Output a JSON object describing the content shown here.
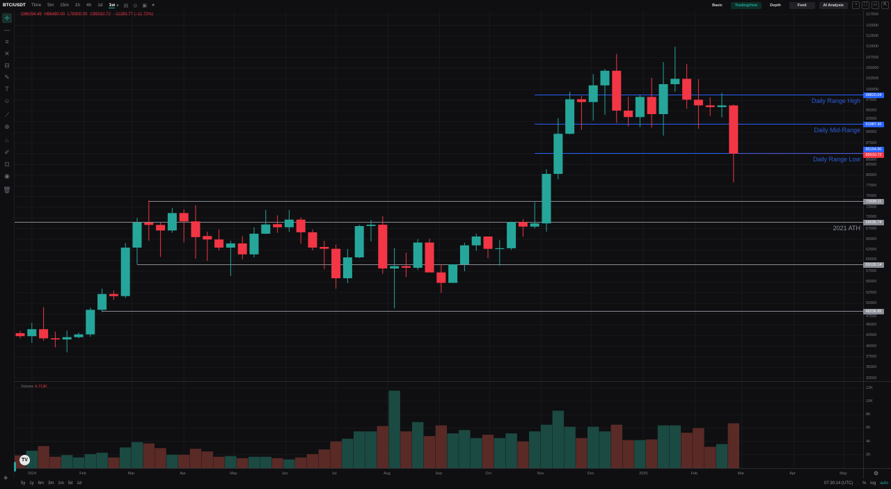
{
  "toolbar": {
    "symbol": "BTC/USDT",
    "timeframes": [
      "Time",
      "5m",
      "15m",
      "1h",
      "4h",
      "1d",
      "1w"
    ],
    "active_timeframe": "1w",
    "icons": [
      "candle-type-icon",
      "indicator-icon",
      "camera-icon",
      "settings-icon"
    ],
    "right_buttons": [
      "Basic",
      "TradingView",
      "Depth",
      "Feed",
      "AI Analysis"
    ],
    "active_view": "TradingView",
    "right_icons": [
      "timer-icon",
      "fullscreen-icon",
      "layout-icon",
      "popout-icon"
    ]
  },
  "legend": {
    "open": "O96294.49",
    "high": "H96490.00",
    "low": "L78300.00",
    "close": "C85010.72",
    "change": "−11283.77 (−11.72%)"
  },
  "left_tools": [
    "crosshair-icon",
    "trend-line-icon",
    "horizontal-lines-icon",
    "fib-icon",
    "pattern-icon",
    "brush-icon",
    "text-icon",
    "emoji-icon",
    "ruler-icon",
    "zoom-icon",
    "magnet-icon",
    "draw-lock-icon",
    "lock-icon",
    "eye-icon",
    "trash-icon"
  ],
  "colors": {
    "up": "#26a69a",
    "down": "#f23645",
    "up_volume": "#1b4a43",
    "down_volume": "#5a2a27",
    "level_blue": "#2962ff",
    "level_grey": "#8a8d96"
  },
  "chart_data": {
    "type": "candlestick",
    "symbol": "BTC/USDT",
    "interval": "1w",
    "ylim": [
      32000,
      118500
    ],
    "price_ticks": [
      117500,
      115000,
      112500,
      110000,
      107500,
      105000,
      102500,
      100000,
      97500,
      95000,
      92500,
      90000,
      87500,
      85000,
      82500,
      80000,
      77500,
      75000,
      72500,
      70000,
      67500,
      65000,
      62500,
      60000,
      57500,
      55000,
      52500,
      50000,
      47500,
      45000,
      42500,
      40000,
      37500,
      35000,
      32500
    ],
    "time_ticks": [
      {
        "label": "2024",
        "date": "2024-01-01"
      },
      {
        "label": "Feb",
        "date": "2024-02-01"
      },
      {
        "label": "Mar",
        "date": "2024-03-01"
      },
      {
        "label": "Apr",
        "date": "2024-04-01"
      },
      {
        "label": "May",
        "date": "2024-05-01"
      },
      {
        "label": "Jun",
        "date": "2024-06-01"
      },
      {
        "label": "Jul",
        "date": "2024-07-01"
      },
      {
        "label": "Aug",
        "date": "2024-08-01"
      },
      {
        "label": "Sep",
        "date": "2024-09-01"
      },
      {
        "label": "Oct",
        "date": "2024-10-01"
      },
      {
        "label": "Nov",
        "date": "2024-11-01"
      },
      {
        "label": "Dec",
        "date": "2024-12-01"
      },
      {
        "label": "2025",
        "date": "2025-01-01"
      },
      {
        "label": "Feb",
        "date": "2025-02-01"
      },
      {
        "label": "Mar",
        "date": "2025-03-01"
      },
      {
        "label": "Apr",
        "date": "2025-04-01"
      },
      {
        "label": "May",
        "date": "2025-05-01"
      }
    ],
    "dates": [
      "2023-12-25",
      "2024-01-01",
      "2024-01-08",
      "2024-01-15",
      "2024-01-22",
      "2024-01-29",
      "2024-02-05",
      "2024-02-12",
      "2024-02-19",
      "2024-02-26",
      "2024-03-04",
      "2024-03-11",
      "2024-03-18",
      "2024-03-25",
      "2024-04-01",
      "2024-04-08",
      "2024-04-15",
      "2024-04-22",
      "2024-04-29",
      "2024-05-06",
      "2024-05-13",
      "2024-05-20",
      "2024-05-27",
      "2024-06-03",
      "2024-06-10",
      "2024-06-17",
      "2024-06-24",
      "2024-07-01",
      "2024-07-08",
      "2024-07-15",
      "2024-07-22",
      "2024-07-29",
      "2024-08-05",
      "2024-08-12",
      "2024-08-19",
      "2024-08-26",
      "2024-09-02",
      "2024-09-09",
      "2024-09-16",
      "2024-09-23",
      "2024-09-30",
      "2024-10-07",
      "2024-10-14",
      "2024-10-21",
      "2024-10-28",
      "2024-11-04",
      "2024-11-11",
      "2024-11-18",
      "2024-11-25",
      "2024-12-02",
      "2024-12-09",
      "2024-12-16",
      "2024-12-23",
      "2024-12-30",
      "2025-01-06",
      "2025-01-13",
      "2025-01-20",
      "2025-01-27",
      "2025-02-03",
      "2025-02-10",
      "2025-02-17",
      "2025-02-24"
    ],
    "ohlc": [
      [
        43030,
        43600,
        41800,
        42330
      ],
      [
        42330,
        45460,
        40770,
        43960
      ],
      [
        43960,
        49100,
        41290,
        41830
      ],
      [
        41830,
        43420,
        39710,
        41560
      ],
      [
        41560,
        43640,
        38570,
        42100
      ],
      [
        42100,
        43200,
        41800,
        42750
      ],
      [
        42750,
        49000,
        42200,
        48500
      ],
      [
        48500,
        53470,
        47900,
        52190
      ],
      [
        52190,
        53000,
        50800,
        51700
      ],
      [
        51700,
        64120,
        51260,
        63040
      ],
      [
        63040,
        70000,
        59130,
        68900
      ],
      [
        68900,
        74050,
        64650,
        68350
      ],
      [
        68350,
        68920,
        60870,
        67050
      ],
      [
        67050,
        72300,
        66500,
        71120
      ],
      [
        71120,
        72000,
        64290,
        69170
      ],
      [
        69170,
        72960,
        60480,
        65490
      ],
      [
        65750,
        66780,
        59950,
        64940
      ],
      [
        64940,
        67270,
        62380,
        63040
      ],
      [
        63040,
        64660,
        56420,
        64020
      ],
      [
        64020,
        65730,
        60320,
        61460
      ],
      [
        61460,
        67800,
        60760,
        66290
      ],
      [
        66290,
        71870,
        66180,
        68450
      ],
      [
        68520,
        70600,
        66500,
        67800
      ],
      [
        67800,
        71870,
        66700,
        69590
      ],
      [
        69590,
        70100,
        63970,
        66620
      ],
      [
        66620,
        67270,
        62380,
        63040
      ],
      [
        63200,
        64660,
        58000,
        62770
      ],
      [
        62770,
        63740,
        53440,
        55880
      ],
      [
        55880,
        62700,
        54740,
        60760
      ],
      [
        60760,
        68400,
        60600,
        68080
      ],
      [
        68100,
        69500,
        64500,
        68400
      ],
      [
        68400,
        70400,
        56900,
        58160
      ],
      [
        58160,
        62930,
        48840,
        58700
      ],
      [
        58700,
        61850,
        56160,
        58320
      ],
      [
        58320,
        65030,
        57830,
        64230
      ],
      [
        64230,
        65100,
        57240,
        57240
      ],
      [
        57240,
        59130,
        52450,
        54800
      ],
      [
        54800,
        59130,
        54800,
        59130
      ],
      [
        59130,
        64200,
        57500,
        63570
      ],
      [
        63570,
        66300,
        62300,
        65640
      ],
      [
        65640,
        65640,
        60580,
        62760
      ],
      [
        62760,
        64840,
        58800,
        62900
      ],
      [
        62900,
        69100,
        62500,
        69000
      ],
      [
        69000,
        69700,
        65600,
        67950
      ],
      [
        67950,
        73660,
        67540,
        68700
      ],
      [
        68700,
        81370,
        66800,
        80280
      ],
      [
        80280,
        93290,
        79000,
        89660
      ],
      [
        89660,
        99520,
        89500,
        97730
      ],
      [
        97730,
        98550,
        90600,
        97080
      ],
      [
        97080,
        103590,
        92750,
        100980
      ],
      [
        100980,
        104790,
        94100,
        104400
      ],
      [
        104400,
        108370,
        92200,
        95080
      ],
      [
        95080,
        98300,
        91400,
        93570
      ],
      [
        93570,
        98650,
        91220,
        98280
      ],
      [
        98280,
        102770,
        91120,
        94260
      ],
      [
        94260,
        106420,
        89220,
        101260
      ],
      [
        101260,
        109990,
        99500,
        102510
      ],
      [
        102510,
        106000,
        95500,
        97630
      ],
      [
        97630,
        102400,
        90850,
        96300
      ],
      [
        96300,
        98200,
        93830,
        95900
      ],
      [
        95900,
        99200,
        93500,
        96294
      ],
      [
        96294.49,
        96490,
        78300,
        85010.72
      ]
    ],
    "volume_label": "Volume",
    "volume_last": "6.713K",
    "volume_ticks": [
      "12K",
      "10K",
      "8K",
      "6K",
      "4K",
      "2K"
    ],
    "volume_k": [
      1.9,
      2.6,
      3.3,
      1.7,
      1.95,
      1.6,
      2.1,
      2.3,
      1.6,
      3.1,
      3.9,
      3.7,
      3.0,
      2.0,
      2.0,
      2.9,
      2.5,
      1.7,
      1.8,
      1.5,
      1.7,
      1.7,
      1.5,
      1.3,
      1.6,
      2.1,
      2.8,
      4.0,
      4.4,
      5.5,
      5.5,
      6.3,
      11.6,
      5.5,
      6.9,
      4.8,
      6.4,
      5.2,
      5.7,
      4.5,
      5.0,
      4.5,
      5.2,
      4.0,
      5.5,
      6.5,
      8.6,
      6.2,
      4.5,
      6.2,
      5.5,
      6.5,
      4.2,
      4.2,
      4.3,
      6.4,
      6.4,
      5.3,
      6.0,
      3.2,
      3.6,
      6.713
    ],
    "levels": [
      {
        "price": 98820.04,
        "tag": "98820.04",
        "text": "Daily Range High",
        "color": "blue",
        "from": "2024-10-28"
      },
      {
        "price": 91987.42,
        "tag": "91987.42",
        "text": "Daily Mid-Range",
        "color": "blue",
        "from": "2024-10-28"
      },
      {
        "price": 85154.9,
        "tag": "85154.90",
        "text": "Daily Range Low",
        "color": "blue",
        "from": "2024-10-28"
      },
      {
        "price": 73938.11,
        "tag": "73938.11",
        "text": "",
        "color": "grey",
        "from": "2024-03-11"
      },
      {
        "price": 69036.74,
        "tag": "69036.74",
        "text": "2021 ATH",
        "color": "grey",
        "from": "2023-12-18"
      },
      {
        "price": 59126.14,
        "tag": "59126.14",
        "text": "",
        "color": "grey",
        "from": "2024-03-04"
      },
      {
        "price": 48236.85,
        "tag": "48236.85",
        "text": "",
        "color": "grey",
        "from": "2024-02-12"
      }
    ],
    "last_price_tag": "85010.72"
  },
  "bottom": {
    "ranges": [
      "5y",
      "1y",
      "6m",
      "3m",
      "1m",
      "5d",
      "1d"
    ],
    "clock": "07:30:14 (UTC)",
    "percent": "%",
    "log": "log",
    "auto": "auto"
  },
  "logo": "TV"
}
